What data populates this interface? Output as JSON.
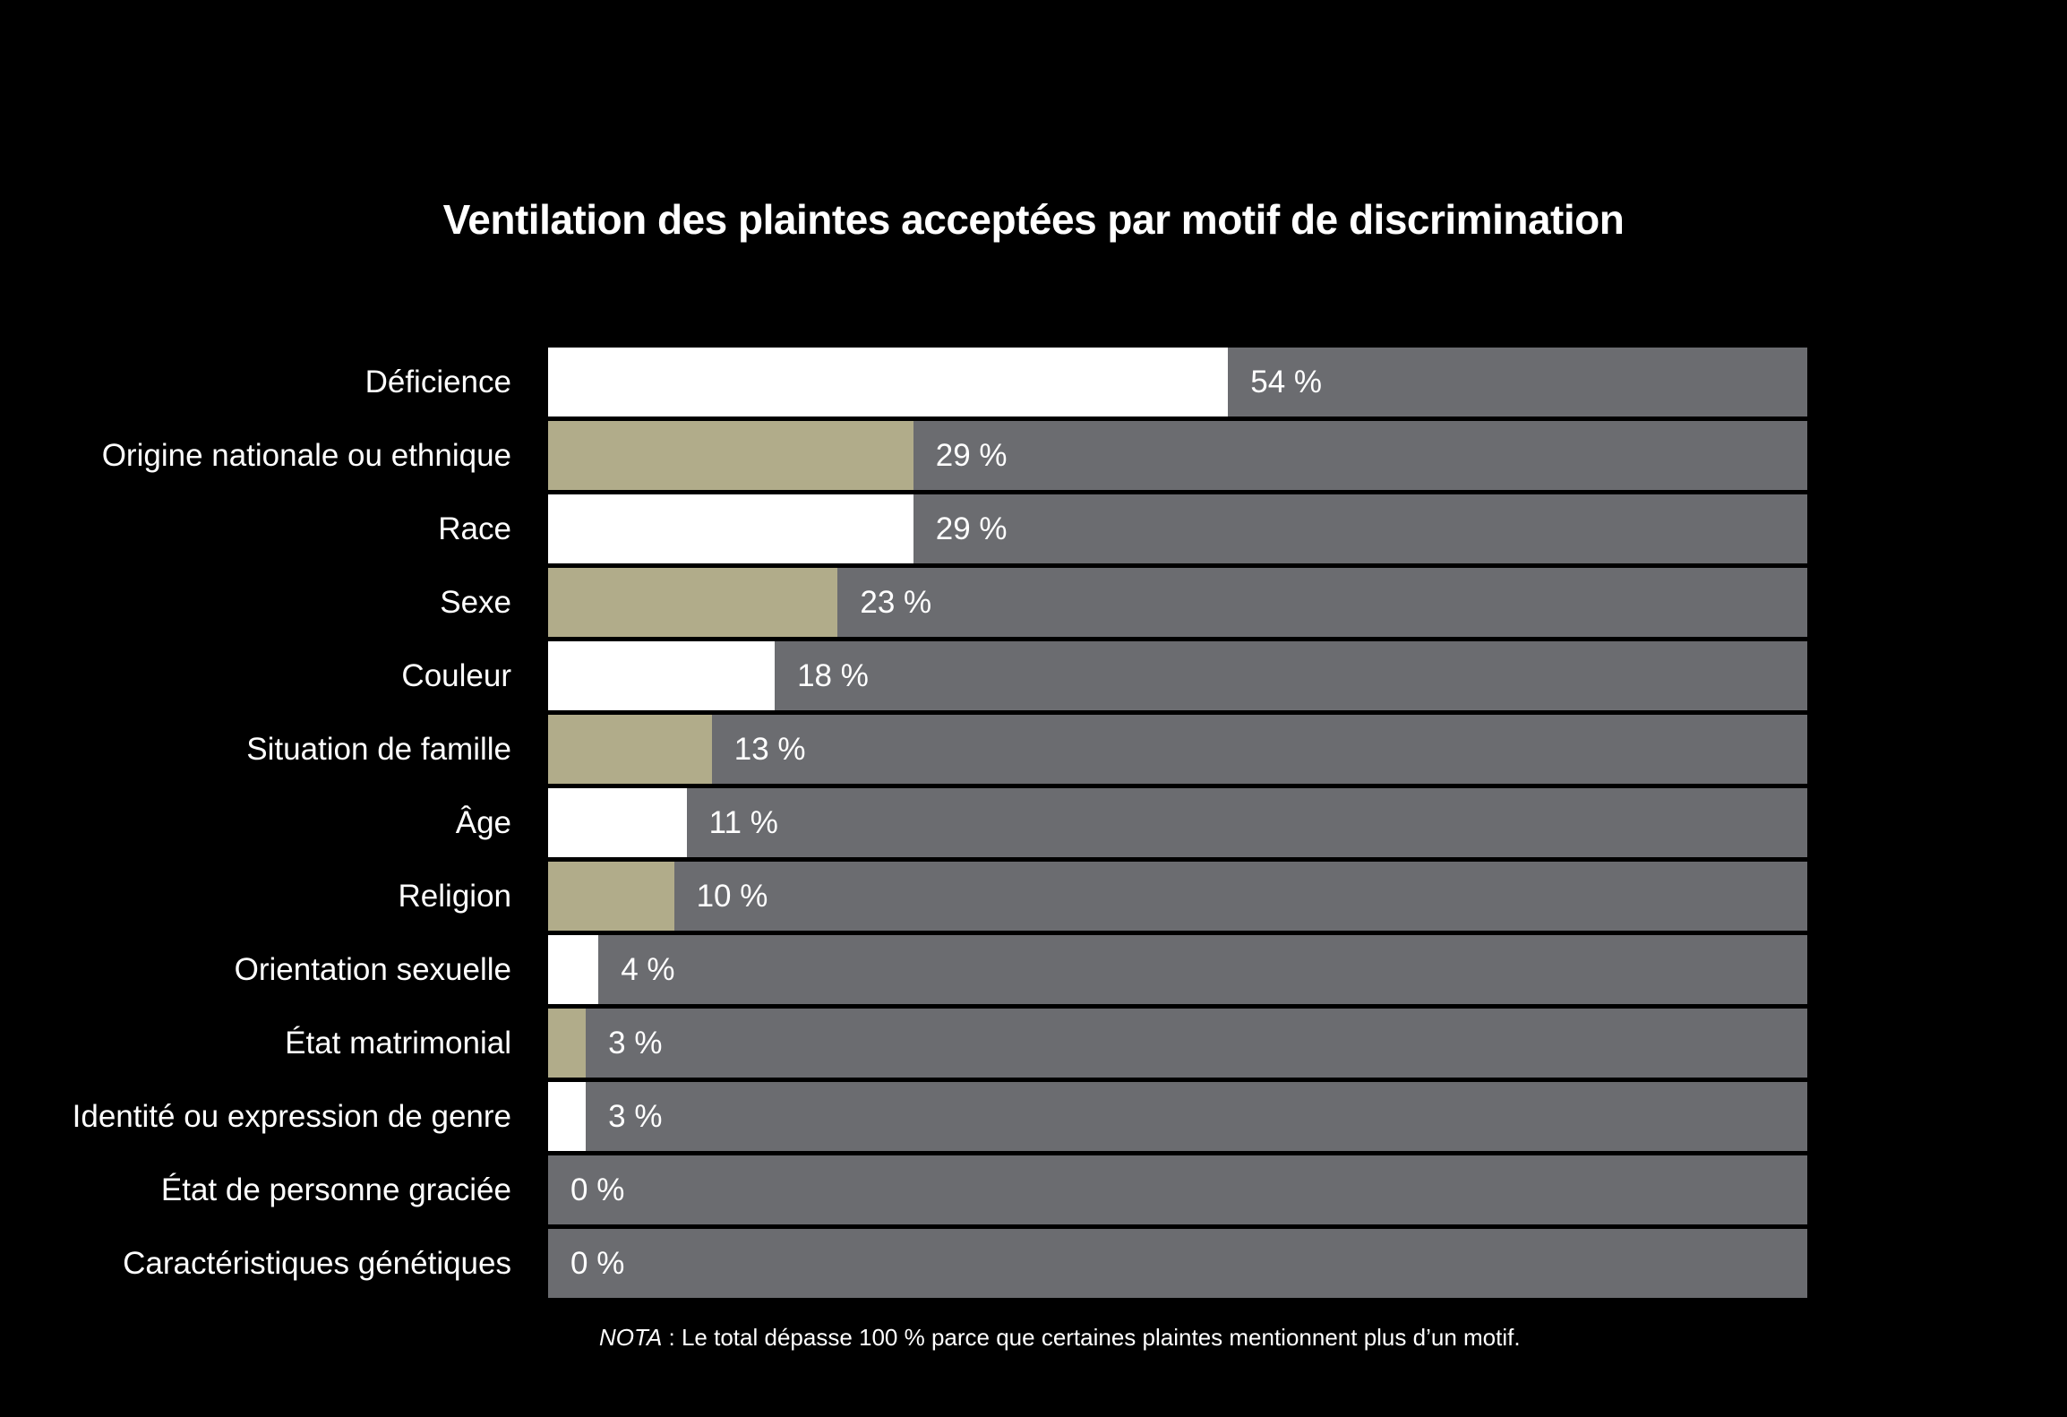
{
  "title": "Ventilation des plaintes acceptées par motif de discrimination",
  "note": {
    "prefix": "NOTA",
    "rest": " : Le total dépasse 100 % parce que certaines plaintes mentionnent plus d’un motif."
  },
  "colors": {
    "background": "#000000",
    "track": "#6b6c70",
    "text": "#ffffff",
    "palette": {
      "white": "#ffffff",
      "tan": "#b1ac8a"
    }
  },
  "chart_data": {
    "type": "bar",
    "orientation": "horizontal",
    "title": "Ventilation des plaintes acceptées par motif de discrimination",
    "xlabel": "",
    "ylabel": "",
    "xlim": [
      0,
      100
    ],
    "grid": false,
    "legend": false,
    "categories": [
      "Déficience",
      "Origine nationale ou ethnique",
      "Race",
      "Sexe",
      "Couleur",
      "Situation de famille",
      "Âge",
      "Religion",
      "Orientation sexuelle",
      "État matrimonial",
      "Identité ou expression de genre",
      "État de personne graciée",
      "Caractéristiques génétiques"
    ],
    "values": [
      54,
      29,
      29,
      23,
      18,
      13,
      11,
      10,
      4,
      3,
      3,
      0,
      0
    ],
    "value_labels": [
      "54 %",
      "29 %",
      "29 %",
      "23 %",
      "18 %",
      "13 %",
      "11 %",
      "10 %",
      "4 %",
      "3 %",
      "3 %",
      "0 %",
      "0 %"
    ],
    "bar_color_keys": [
      "white",
      "tan",
      "white",
      "tan",
      "white",
      "tan",
      "white",
      "tan",
      "white",
      "tan",
      "white",
      "tan",
      "white"
    ],
    "track_represents": "100 %",
    "note": "NOTA : Le total dépasse 100 % parce que certaines plaintes mentionnent plus d’un motif."
  }
}
